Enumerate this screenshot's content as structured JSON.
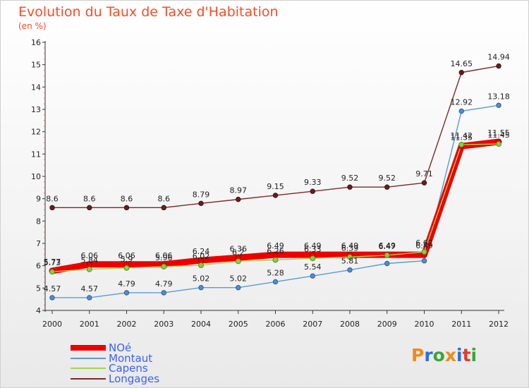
{
  "header": {
    "title": "Evolution du Taux de Taxe d'Habitation",
    "subtitle": "(en %)"
  },
  "logo": {
    "text": "Proxiti",
    "colors": [
      "#f08a1c",
      "#2a6fd6",
      "#3aa53a",
      "#f08a1c",
      "#2a6fd6",
      "#e23b2e",
      "#3aa53a"
    ]
  },
  "chart_data": {
    "type": "line",
    "title": "Evolution du Taux de Taxe d'Habitation",
    "ylabel": "(en %)",
    "xlabel": "",
    "ylim": [
      4,
      16
    ],
    "yticks": [
      4,
      5,
      6,
      7,
      8,
      9,
      10,
      11,
      12,
      13,
      14,
      15,
      16
    ],
    "grid": false,
    "legend": "bottom-left",
    "x": [
      "2000",
      "2001",
      "2002",
      "2003",
      "2004",
      "2005",
      "2006",
      "2007",
      "2008",
      "2009",
      "2010",
      "2011",
      "2012"
    ],
    "series": [
      {
        "name": "NOé",
        "color": "#ee0000",
        "values": [
          5.77,
          6.06,
          6.06,
          6.06,
          6.24,
          6.36,
          6.49,
          6.49,
          6.49,
          6.49,
          6.49,
          11.35,
          11.55
        ],
        "labels": [
          "5.77",
          "6.06",
          "6.06",
          "6.06",
          "6.24",
          "6.36",
          "6.49",
          "6.49",
          "6.49",
          "6.49",
          "6.49",
          "11.35",
          "11.55"
        ]
      },
      {
        "name": "Montaut",
        "color": "#5b9ad5",
        "values": [
          4.57,
          4.57,
          4.79,
          4.79,
          5.02,
          5.02,
          5.28,
          5.54,
          5.81,
          6.1,
          6.22,
          12.92,
          13.18
        ],
        "labels": [
          "4.57",
          "4.57",
          "4.79",
          "4.79",
          "5.02",
          "5.02",
          "5.28",
          "5.54",
          "5.81",
          "",
          "",
          "12.92",
          "13.18"
        ]
      },
      {
        "name": "Capens",
        "color": "#a6d35a",
        "values": [
          5.73,
          5.84,
          5.9,
          5.96,
          6.02,
          6.2,
          6.26,
          6.33,
          6.39,
          6.47,
          6.62,
          11.42,
          11.45
        ],
        "labels": [
          "5.73",
          "5.84",
          "5.9",
          "5.96",
          "6.02",
          "6.2",
          "6.26",
          "6.33",
          "6.39",
          "6.47",
          "6.62",
          "11.42",
          "11.45"
        ]
      },
      {
        "name": "Longages",
        "color": "#7b2a2a",
        "values": [
          8.6,
          8.6,
          8.6,
          8.6,
          8.79,
          8.97,
          9.15,
          9.33,
          9.52,
          9.52,
          9.71,
          14.65,
          14.94
        ],
        "labels": [
          "8.6",
          "8.6",
          "8.6",
          "8.6",
          "8.79",
          "8.97",
          "9.15",
          "9.33",
          "9.52",
          "9.52",
          "9.71",
          "14.65",
          "14.94"
        ]
      }
    ]
  }
}
